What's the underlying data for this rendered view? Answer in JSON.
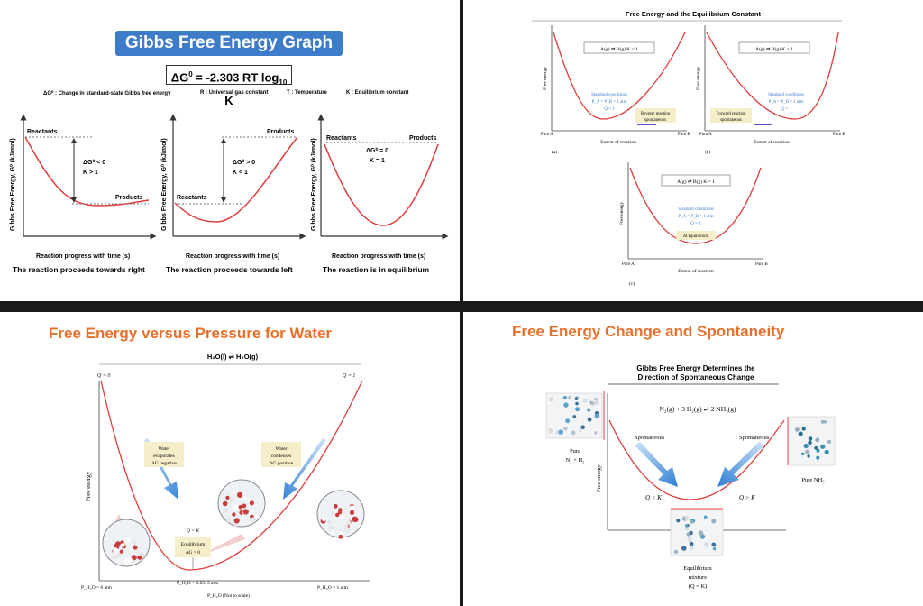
{
  "gibbs_graph": {
    "title": "Gibbs Free Energy Graph",
    "equation_prefix": "ΔG",
    "equation_sup": "0",
    "equation_mid": " = -2.303 RT log",
    "equation_sub": "10",
    "equation_suffix": " K",
    "legend": [
      "ΔG⁰ : Change in standard-state Gibbs free energy",
      "R : Universal gas constant",
      "T : Temperature",
      "K : Equilibrium constant"
    ],
    "ylabel": "Gibbs Free Energy, G⁰ (kJ/mol)",
    "xlabel": "Reaction progress with time (s)",
    "graphs": [
      {
        "top_label": "Reactants",
        "bottom_label": "Products",
        "condition1": "ΔG⁰ < 0",
        "condition2": "K > 1",
        "caption": "The reaction proceeds towards right"
      },
      {
        "top_label": "Products",
        "bottom_label": "Reactants",
        "condition1": "ΔG⁰ > 0",
        "condition2": "K < 1",
        "caption": "The reaction proceeds towards left"
      },
      {
        "left_label": "Reactants",
        "right_label": "Products",
        "condition1": "ΔG⁰ = 0",
        "condition2": "K = 1",
        "caption": "The reaction is in equilibrium"
      }
    ]
  },
  "equilibrium_constant": {
    "title": "Free Energy and the Equilibrium Constant",
    "ylabel": "Free energy",
    "xlabel": "Extent of reaction",
    "pure_a": "Pure A",
    "pure_b": "Pure B",
    "a": {
      "reaction": "A(g) ⇌ B(g)   K < 1",
      "std1": "Standard conditions",
      "std2": "P_A = P_B = 1 atm",
      "std3": "Q = 1",
      "note1": "Reverse reaction",
      "note2": "spontaneous",
      "tag": "(a)"
    },
    "b": {
      "reaction": "A(g) ⇌ B(g)   K > 1",
      "std1": "Standard conditions",
      "std2": "P_A = P_B = 1 atm",
      "std3": "Q = 1",
      "note1": "Forward reaction",
      "note2": "spontaneous",
      "tag": "(b)"
    },
    "c": {
      "reaction": "A(g) ⇌ B(g)   K = 1",
      "std1": "Standard conditions",
      "std2": "P_A = P_B = 1 atm",
      "std3": "Q = 1",
      "note1": "At equilibrium",
      "tag": "(c)"
    }
  },
  "water_pressure": {
    "title": "Free Energy versus Pressure for Water",
    "reaction": "H₂O(l) ⇌ H₂O(g)",
    "q_left": "Q = 0",
    "q_right": "Q = 1",
    "ylabel": "Free energy",
    "evap1": "Water",
    "evap2": "evaporates",
    "evap3": "ΔG negative",
    "cond1": "Water",
    "cond2": "condenses",
    "cond3": "ΔG positive",
    "eq0": "Q = K",
    "eq1": "Equilibrium",
    "eq2": "ΔG = 0",
    "p_left": "P_H₂O = 0 atm",
    "p_mid": "P_H₂O = 0.0313 atm",
    "p_right": "P_H₂O = 1 atm",
    "xlabel": "P_H₂O (Not to scale)"
  },
  "spontaneity": {
    "title": "Free Energy Change and Spontaneity",
    "subtitle1": "Gibbs Free Energy Determines the",
    "subtitle2": "Direction of Spontaneous Change",
    "reaction": "N₂(g) + 3 H₂(g) ⇌ 2 NH₃(g)",
    "ylabel": "Free energy",
    "spont_left": "Spontaneous",
    "spont_right": "Spontaneous",
    "q_less": "Q < K",
    "q_greater": "Q > K",
    "pure_left1": "Pure",
    "pure_left2": "N₂ + H₂",
    "pure_right": "Pure NH₃",
    "mix1": "Equilibrium",
    "mix2": "mixture",
    "mix3": "(Q = K)"
  },
  "colors": {
    "curve": "#e03c3c",
    "title_blue": "#3d7cc9",
    "title_orange": "#e8702a",
    "arrow_blue": "#4a90d9"
  }
}
